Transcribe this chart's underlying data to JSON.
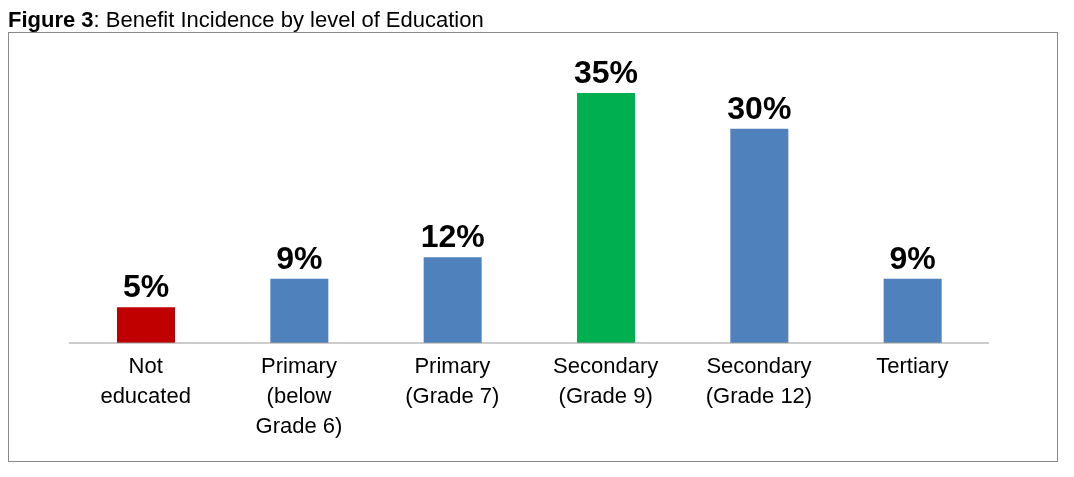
{
  "chart_data": {
    "type": "bar",
    "title": "Figure 3: Benefit Incidence by level of Education",
    "categories": [
      "Not educated",
      "Primary (below Grade 6)",
      "Primary (Grade 7)",
      "Secondary (Grade 9)",
      "Secondary (Grade 12)",
      "Tertiary"
    ],
    "values": [
      5,
      9,
      12,
      35,
      30,
      9
    ],
    "colors": [
      "#c00000",
      "#4f81bd",
      "#4f81bd",
      "#00b050",
      "#4f81bd",
      "#4f81bd"
    ],
    "value_labels": [
      "5%",
      "9%",
      "12%",
      "35%",
      "30%",
      "9%"
    ]
  }
}
